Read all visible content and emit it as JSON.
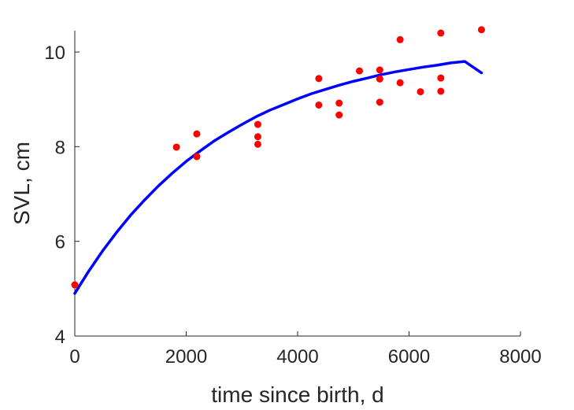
{
  "chart_data": {
    "type": "scatter",
    "title": "",
    "xlabel": "time since birth, d",
    "ylabel": "SVL, cm",
    "xlim": [
      0,
      8000
    ],
    "ylim": [
      4,
      10.45
    ],
    "xticks": [
      0,
      2000,
      4000,
      6000,
      8000
    ],
    "yticks": [
      4,
      6,
      8,
      10
    ],
    "xtick_labels": [
      "0",
      "2000",
      "4000",
      "6000",
      "8000"
    ],
    "ytick_labels": [
      "4",
      "6",
      "8",
      "10"
    ],
    "grid": false,
    "legend": "none",
    "series": [
      {
        "kind": "scatter",
        "color": "#ff0000",
        "x": [
          0,
          1825,
          2190,
          2190,
          3285,
          3285,
          3285,
          4380,
          4380,
          4745,
          4745,
          5110,
          5475,
          5475,
          5475,
          5840,
          5840,
          6205,
          6570,
          6570,
          6570,
          7300
        ],
        "y": [
          5.08,
          7.99,
          8.27,
          7.79,
          8.47,
          8.21,
          8.05,
          9.44,
          8.88,
          8.92,
          8.67,
          9.6,
          9.62,
          9.43,
          8.94,
          10.26,
          9.35,
          9.16,
          10.4,
          9.45,
          9.17,
          10.47
        ]
      },
      {
        "kind": "line",
        "color": "#0000ff",
        "x": [
          0,
          250,
          500,
          750,
          1000,
          1250,
          1500,
          1750,
          2000,
          2250,
          2500,
          2750,
          3000,
          3250,
          3500,
          3750,
          4000,
          4250,
          4500,
          4750,
          5000,
          5250,
          5500,
          5750,
          6000,
          6250,
          6500,
          6750,
          7000,
          7300
        ],
        "y": [
          4.9,
          5.37,
          5.8,
          6.19,
          6.55,
          6.87,
          7.17,
          7.44,
          7.69,
          7.91,
          8.12,
          8.3,
          8.47,
          8.63,
          8.77,
          8.89,
          9.01,
          9.12,
          9.21,
          9.3,
          9.38,
          9.45,
          9.52,
          9.58,
          9.63,
          9.68,
          9.72,
          9.77,
          9.8,
          9.56
        ]
      }
    ]
  }
}
